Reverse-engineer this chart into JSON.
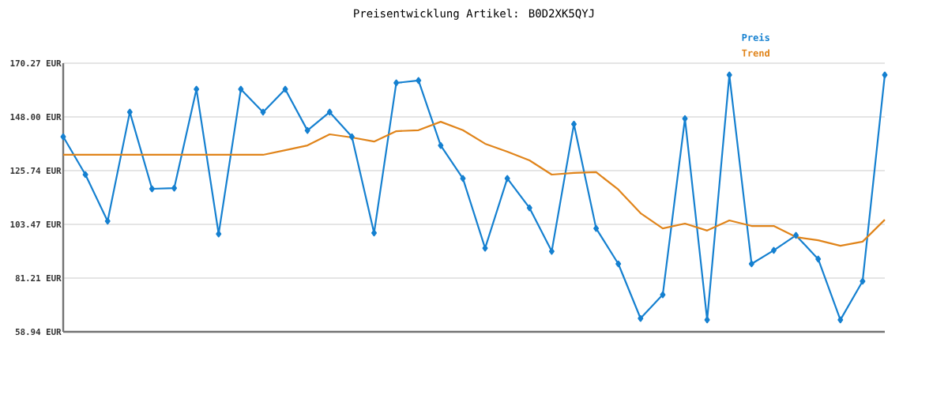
{
  "chart_data": {
    "type": "line",
    "title": "Preisentwicklung Artikel: B0D2XK5QYJ",
    "categories": [
      null,
      null,
      null,
      null,
      null,
      null,
      null,
      null,
      null,
      null,
      null,
      null,
      null,
      null,
      null,
      null,
      null,
      null,
      null,
      null,
      null,
      null,
      null,
      null,
      null,
      null,
      null,
      null,
      null,
      null,
      null,
      null,
      null,
      null,
      null,
      null,
      null,
      null
    ],
    "series": [
      {
        "name": "Preis",
        "color": "#1580d0",
        "marker": "diamond",
        "values": [
          139.8,
          124.1,
          104.8,
          150.0,
          118.2,
          118.5,
          159.5,
          99.5,
          159.5,
          150.0,
          159.5,
          142.4,
          150.0,
          139.8,
          99.9,
          162.1,
          163.1,
          136.2,
          122.5,
          93.6,
          122.5,
          110.3,
          92.3,
          145.0,
          101.8,
          87.1,
          64.5,
          74.3,
          147.3,
          63.9,
          165.4,
          87.1,
          92.7,
          98.9,
          89.1,
          63.9,
          79.9,
          165.4
        ]
      },
      {
        "name": "Trend",
        "color": "#e0841a",
        "values": [
          132.3,
          132.3,
          132.3,
          132.3,
          132.3,
          132.3,
          132.3,
          132.3,
          132.3,
          132.3,
          134.2,
          136.2,
          140.8,
          139.5,
          137.8,
          142.1,
          142.5,
          146.0,
          142.5,
          136.9,
          133.6,
          130.0,
          124.1,
          124.8,
          125.1,
          117.9,
          108.1,
          101.8,
          103.8,
          100.9,
          105.1,
          102.8,
          102.8,
          98.2,
          96.9,
          94.6,
          96.3,
          105.4
        ]
      }
    ],
    "ylim": [
      58.94,
      170.27
    ],
    "yticks": [
      {
        "value": 58.94,
        "label": "58.94 EUR"
      },
      {
        "value": 81.21,
        "label": "81.21 EUR"
      },
      {
        "value": 103.47,
        "label": "103.47 EUR"
      },
      {
        "value": 125.74,
        "label": "125.74 EUR"
      },
      {
        "value": 148.0,
        "label": "148.00 EUR"
      },
      {
        "value": 170.27,
        "label": "170.27 EUR"
      }
    ],
    "grid": "y",
    "line_style": "solid"
  }
}
